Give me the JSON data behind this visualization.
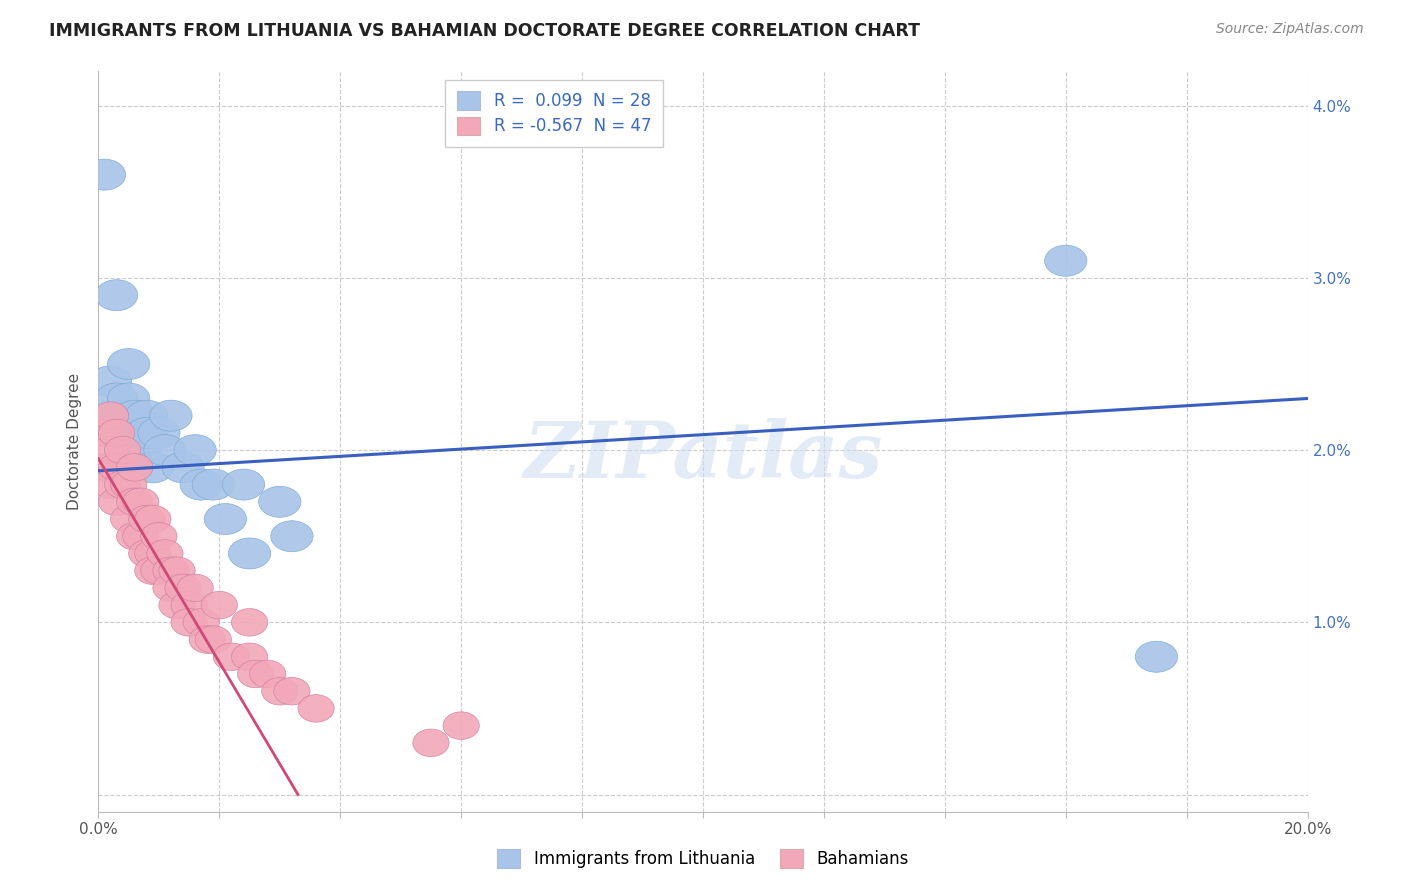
{
  "title": "IMMIGRANTS FROM LITHUANIA VS BAHAMIAN DOCTORATE DEGREE CORRELATION CHART",
  "source": "Source: ZipAtlas.com",
  "ylabel": "Doctorate Degree",
  "right_yticks": [
    "",
    "1.0%",
    "2.0%",
    "3.0%",
    "4.0%"
  ],
  "right_ytick_vals": [
    0.0,
    0.01,
    0.02,
    0.03,
    0.04
  ],
  "xlim": [
    0.0,
    0.2
  ],
  "ylim": [
    -0.001,
    0.042
  ],
  "legend_blue_r": "0.099",
  "legend_blue_n": "28",
  "legend_pink_r": "-0.567",
  "legend_pink_n": "47",
  "blue_color": "#a8c4e8",
  "pink_color": "#f2a8b8",
  "blue_line_color": "#3a5fbf",
  "pink_line_color": "#d04878",
  "watermark": "ZIPatlas",
  "blue_scatter_x": [
    0.001,
    0.002,
    0.002,
    0.003,
    0.003,
    0.004,
    0.004,
    0.005,
    0.005,
    0.006,
    0.007,
    0.008,
    0.008,
    0.009,
    0.01,
    0.011,
    0.012,
    0.014,
    0.016,
    0.017,
    0.019,
    0.021,
    0.024,
    0.025,
    0.03,
    0.032,
    0.16,
    0.175
  ],
  "blue_scatter_y": [
    0.036,
    0.024,
    0.022,
    0.029,
    0.023,
    0.022,
    0.021,
    0.025,
    0.023,
    0.022,
    0.02,
    0.022,
    0.021,
    0.019,
    0.021,
    0.02,
    0.022,
    0.019,
    0.02,
    0.018,
    0.018,
    0.016,
    0.018,
    0.014,
    0.017,
    0.015,
    0.031,
    0.008
  ],
  "pink_scatter_x": [
    0.001,
    0.001,
    0.002,
    0.002,
    0.002,
    0.003,
    0.003,
    0.003,
    0.004,
    0.004,
    0.005,
    0.005,
    0.006,
    0.006,
    0.006,
    0.007,
    0.007,
    0.008,
    0.008,
    0.009,
    0.009,
    0.009,
    0.01,
    0.01,
    0.011,
    0.012,
    0.012,
    0.013,
    0.013,
    0.014,
    0.015,
    0.015,
    0.016,
    0.017,
    0.018,
    0.019,
    0.02,
    0.022,
    0.025,
    0.025,
    0.026,
    0.028,
    0.03,
    0.032,
    0.036,
    0.055,
    0.06
  ],
  "pink_scatter_y": [
    0.021,
    0.019,
    0.022,
    0.02,
    0.018,
    0.021,
    0.019,
    0.017,
    0.02,
    0.018,
    0.018,
    0.016,
    0.019,
    0.017,
    0.015,
    0.017,
    0.015,
    0.016,
    0.014,
    0.016,
    0.014,
    0.013,
    0.015,
    0.013,
    0.014,
    0.013,
    0.012,
    0.013,
    0.011,
    0.012,
    0.011,
    0.01,
    0.012,
    0.01,
    0.009,
    0.009,
    0.011,
    0.008,
    0.01,
    0.008,
    0.007,
    0.007,
    0.006,
    0.006,
    0.005,
    0.003,
    0.004
  ],
  "blue_line_x": [
    0.0,
    0.2
  ],
  "blue_line_y": [
    0.0188,
    0.023
  ],
  "pink_line_x": [
    0.0,
    0.033
  ],
  "pink_line_y": [
    0.0195,
    0.0
  ],
  "x_tick_positions": [
    0.0,
    0.02,
    0.04,
    0.06,
    0.08,
    0.1,
    0.12,
    0.14,
    0.16,
    0.18,
    0.2
  ],
  "x_tick_labels": [
    "0.0%",
    "",
    "",
    "",
    "",
    "",
    "",
    "",
    "",
    "",
    "20.0%"
  ]
}
